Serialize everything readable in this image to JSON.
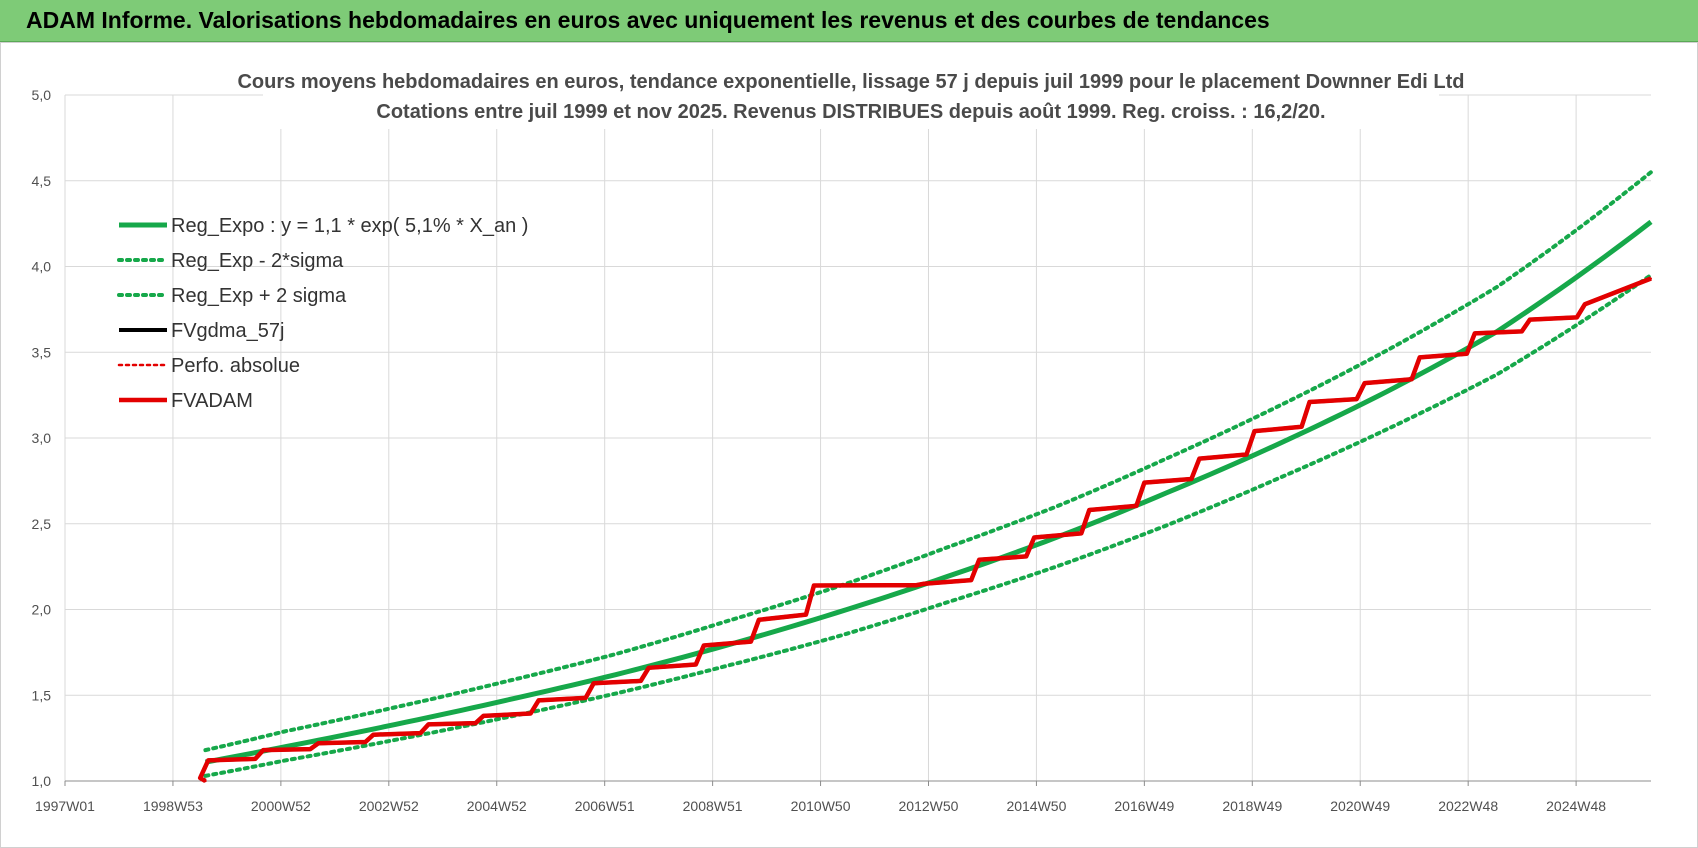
{
  "header": {
    "title": "ADAM Informe. Valorisations hebdomadaires en euros avec uniquement les revenus et des courbes de tendances"
  },
  "colors": {
    "header_bg": "#7ecb77",
    "trend_green": "#16a84a",
    "series_black": "#000000",
    "series_red": "#e30000"
  },
  "chart_data": {
    "type": "line",
    "title": "Cours moyens hebdomadaires en euros, tendance exponentielle, lissage 57 j depuis juil 1999 pour le placement Downner Edi Ltd",
    "subtitle": "Cotations entre juil 1999 et nov 2025. Revenus DISTRIBUES depuis août 1999. Reg. croiss. : 16,2/20.",
    "xlabel": "",
    "ylabel": "",
    "ylim": [
      1.0,
      5.0
    ],
    "xlim": [
      1997.0,
      2025.8
    ],
    "grid": true,
    "legend_position": "top-left",
    "x_tick_labels": [
      "1997W01",
      "1998W53",
      "2000W52",
      "2002W52",
      "2004W52",
      "2006W51",
      "2008W51",
      "2010W50",
      "2012W50",
      "2014W50",
      "2016W49",
      "2018W49",
      "2020W49",
      "2022W48",
      "2024W48"
    ],
    "y_tick_labels": [
      "1,0",
      "1,5",
      "2,0",
      "2,5",
      "3,0",
      "3,5",
      "4,0",
      "4,5",
      "5,0"
    ],
    "series": [
      {
        "name": "Reg_Expo : y = 1,1 * exp( 5,1% *  X_an )",
        "style": "solid-green",
        "x": [
          1999.55,
          2001,
          2003,
          2005,
          2007,
          2009,
          2011,
          2013,
          2015,
          2017,
          2019,
          2021,
          2023,
          2025.8
        ],
        "y": [
          1.11,
          1.2,
          1.33,
          1.47,
          1.62,
          1.79,
          1.98,
          2.19,
          2.42,
          2.68,
          2.96,
          3.27,
          3.62,
          4.26
        ]
      },
      {
        "name": "Reg_Exp - 2*sigma",
        "style": "dotted-green",
        "x": [
          1999.55,
          2001,
          2003,
          2005,
          2007,
          2009,
          2011,
          2013,
          2015,
          2017,
          2019,
          2021,
          2023,
          2025.8
        ],
        "y": [
          1.03,
          1.12,
          1.24,
          1.37,
          1.51,
          1.67,
          1.84,
          2.04,
          2.25,
          2.49,
          2.76,
          3.05,
          3.37,
          3.95
        ]
      },
      {
        "name": "Reg_Exp + 2 sigma",
        "style": "dotted-green",
        "x": [
          1999.55,
          2001,
          2003,
          2005,
          2007,
          2009,
          2011,
          2013,
          2015,
          2017,
          2019,
          2021,
          2023,
          2025.8
        ],
        "y": [
          1.18,
          1.29,
          1.43,
          1.58,
          1.74,
          1.93,
          2.13,
          2.36,
          2.6,
          2.88,
          3.18,
          3.51,
          3.88,
          4.55
        ]
      },
      {
        "name": "FVgdma_57j",
        "style": "solid-black",
        "x": [
          1999.55,
          1999.6,
          2000.6,
          2001.6,
          2002.6,
          2003.6,
          2004.6,
          2005.6,
          2006.6,
          2007.6,
          2008.6,
          2009.6,
          2010.6,
          2012.6,
          2013.6,
          2014.6,
          2015.6,
          2016.6,
          2017.6,
          2018.6,
          2019.6,
          2020.6,
          2021.6,
          2022.6,
          2023.6,
          2024.6,
          2025.8
        ],
        "y": [
          1.0,
          1.12,
          1.18,
          1.22,
          1.27,
          1.33,
          1.38,
          1.47,
          1.57,
          1.66,
          1.79,
          1.94,
          2.14,
          2.15,
          2.29,
          2.42,
          2.58,
          2.74,
          2.88,
          3.04,
          3.21,
          3.32,
          3.47,
          3.61,
          3.69,
          3.78,
          3.93
        ]
      },
      {
        "name": "Perfo. absolue",
        "style": "dotted-red",
        "x": [
          1999.55,
          1999.6,
          2000.6,
          2001.6,
          2002.6,
          2003.6,
          2004.6,
          2005.6,
          2006.6,
          2007.6,
          2008.6,
          2009.6,
          2010.6,
          2012.6,
          2013.6,
          2014.6,
          2015.6,
          2016.6,
          2017.6,
          2018.6,
          2019.6,
          2020.6,
          2021.6,
          2022.6,
          2023.6,
          2024.6,
          2025.8
        ],
        "y": [
          1.0,
          1.12,
          1.18,
          1.22,
          1.27,
          1.33,
          1.38,
          1.47,
          1.57,
          1.66,
          1.79,
          1.94,
          2.14,
          2.15,
          2.29,
          2.42,
          2.58,
          2.74,
          2.88,
          3.04,
          3.21,
          3.32,
          3.47,
          3.61,
          3.69,
          3.78,
          3.93
        ]
      },
      {
        "name": "FVADAM",
        "style": "solid-red",
        "x": [
          1999.55,
          1999.6,
          2000.6,
          2001.6,
          2002.6,
          2003.6,
          2004.6,
          2005.6,
          2006.6,
          2007.6,
          2008.6,
          2009.6,
          2010.6,
          2012.6,
          2013.6,
          2014.6,
          2015.6,
          2016.6,
          2017.6,
          2018.6,
          2019.6,
          2020.6,
          2021.6,
          2022.6,
          2023.6,
          2024.6,
          2025.8
        ],
        "y": [
          1.0,
          1.12,
          1.18,
          1.22,
          1.27,
          1.33,
          1.38,
          1.47,
          1.57,
          1.66,
          1.79,
          1.94,
          2.14,
          2.15,
          2.29,
          2.42,
          2.58,
          2.74,
          2.88,
          3.04,
          3.21,
          3.32,
          3.47,
          3.61,
          3.69,
          3.78,
          3.93
        ]
      }
    ]
  }
}
